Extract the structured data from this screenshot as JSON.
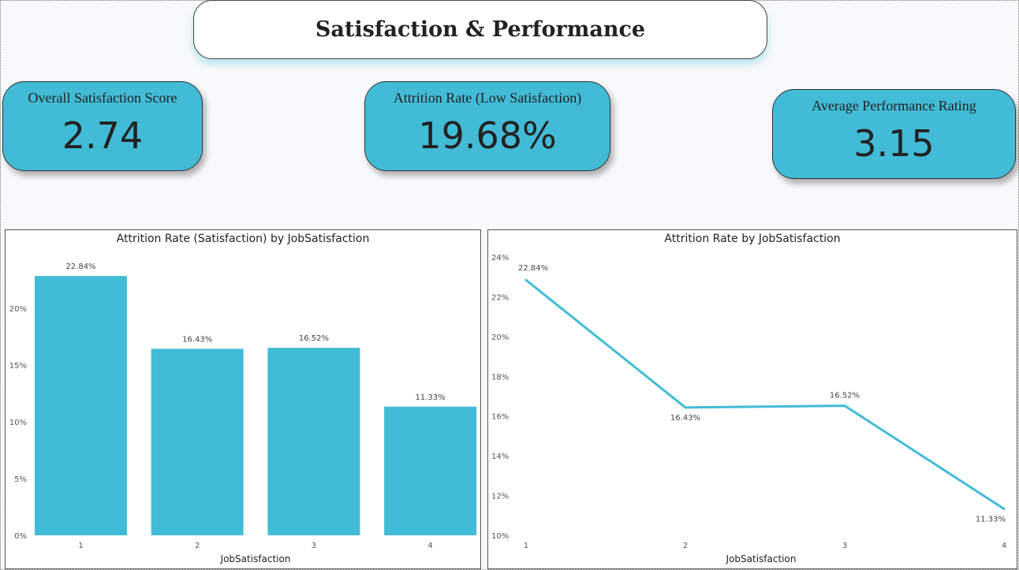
{
  "header": {
    "title": "Satisfaction & Performance"
  },
  "kpis": [
    {
      "label": "Overall Satisfaction Score",
      "value": "2.74"
    },
    {
      "label": "Attrition Rate (Low Satisfaction)",
      "value": "19.68%"
    },
    {
      "label": "Average Performance Rating",
      "value": "3.15"
    }
  ],
  "colors": {
    "accent": "#42bbd6",
    "background": "#f8f9fb"
  },
  "chart_data": [
    {
      "type": "bar",
      "title": "Attrition Rate (Satisfaction) by JobSatisfaction",
      "xlabel": "JobSatisfaction",
      "ylabel": "",
      "categories": [
        "1",
        "2",
        "3",
        "4"
      ],
      "values": [
        22.84,
        16.43,
        16.52,
        11.33
      ],
      "data_labels": [
        "22.84%",
        "16.43%",
        "16.52%",
        "11.33%"
      ],
      "yticks": [
        "0%",
        "5%",
        "10%",
        "15%",
        "20%"
      ],
      "ylim": [
        0,
        25
      ],
      "grid": false
    },
    {
      "type": "line",
      "title": "Attrition Rate by JobSatisfaction",
      "xlabel": "JobSatisfaction",
      "ylabel": "",
      "categories": [
        "1",
        "2",
        "3",
        "4"
      ],
      "values": [
        22.84,
        16.43,
        16.52,
        11.33
      ],
      "data_labels": [
        "22.84%",
        "16.43%",
        "16.52%",
        "11.33%"
      ],
      "yticks": [
        "10%",
        "12%",
        "14%",
        "16%",
        "18%",
        "20%",
        "22%",
        "24%"
      ],
      "ylim": [
        10,
        24
      ],
      "grid": false
    }
  ]
}
